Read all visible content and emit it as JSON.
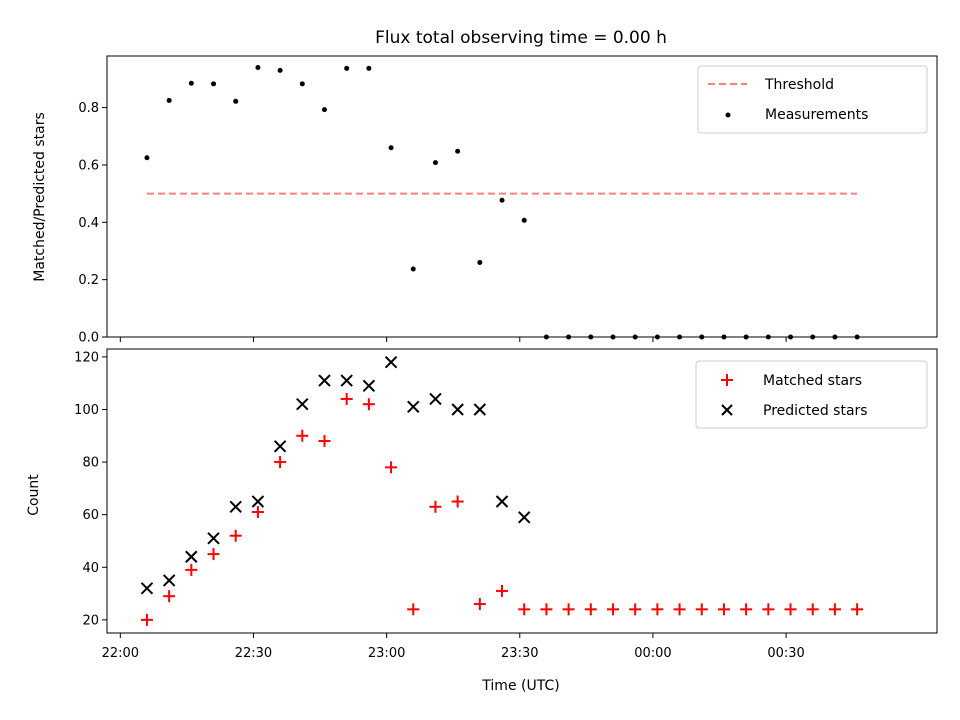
{
  "chart_data": [
    {
      "type": "scatter",
      "title": "Flux total observing time = 0.00 h",
      "xlabel": "",
      "ylabel": "Matched/Predicted stars",
      "ylim": [
        0,
        0.98
      ],
      "yticks": [
        0.0,
        0.2,
        0.4,
        0.6,
        0.8
      ],
      "legend": "top-right",
      "grid": false,
      "threshold": {
        "name": "Threshold",
        "value": 0.5,
        "color": "#ff7f7f",
        "style": "dashed"
      },
      "series": [
        {
          "name": "Measurements",
          "marker": "dot",
          "color": "#000000",
          "values": [
            0.625,
            0.825,
            0.885,
            0.883,
            0.822,
            0.94,
            0.93,
            0.883,
            0.793,
            0.937,
            0.937,
            0.66,
            0.237,
            0.608,
            0.648,
            0.26,
            0.477,
            0.407,
            0,
            0,
            0,
            0,
            0,
            0,
            0,
            0,
            0,
            0,
            0,
            0,
            0,
            0,
            0
          ]
        }
      ]
    },
    {
      "type": "scatter",
      "xlabel": "Time (UTC)",
      "ylabel": "Count",
      "ylim": [
        15,
        123
      ],
      "yticks": [
        20,
        40,
        60,
        80,
        100,
        120
      ],
      "legend": "top-right",
      "grid": false,
      "series": [
        {
          "name": "Matched stars",
          "marker": "plus",
          "color": "#ff0000",
          "values": [
            20,
            29,
            39,
            45,
            52,
            61,
            80,
            90,
            88,
            104,
            102,
            78,
            24,
            63,
            65,
            26,
            31,
            24,
            24,
            24,
            24,
            24,
            24,
            24,
            24,
            24,
            24,
            24,
            24,
            24,
            24,
            24,
            24
          ]
        },
        {
          "name": "Predicted stars",
          "marker": "x",
          "color": "#000000",
          "values": [
            32,
            35,
            44,
            51,
            63,
            65,
            86,
            102,
            111,
            111,
            109,
            118,
            101,
            104,
            100,
            100,
            65,
            59,
            null,
            null,
            null,
            null,
            null,
            null,
            null,
            null,
            null,
            null,
            null,
            null,
            null,
            null,
            null
          ]
        }
      ]
    }
  ],
  "shared_x": {
    "times": [
      "22:06",
      "22:11",
      "22:16",
      "22:21",
      "22:26",
      "22:31",
      "22:36",
      "22:41",
      "22:46",
      "22:51",
      "22:56",
      "23:01",
      "23:06",
      "23:11",
      "23:16",
      "23:21",
      "23:26",
      "23:31",
      "23:36",
      "23:41",
      "23:46",
      "23:51",
      "23:56",
      "00:01",
      "00:06",
      "00:11",
      "00:16",
      "00:21",
      "00:26",
      "00:31",
      "00:36",
      "00:41",
      "00:46"
    ],
    "tick_labels": [
      "22:00",
      "22:30",
      "23:00",
      "23:30",
      "00:00",
      "00:30"
    ],
    "range": [
      "21:57",
      "01:04"
    ]
  }
}
